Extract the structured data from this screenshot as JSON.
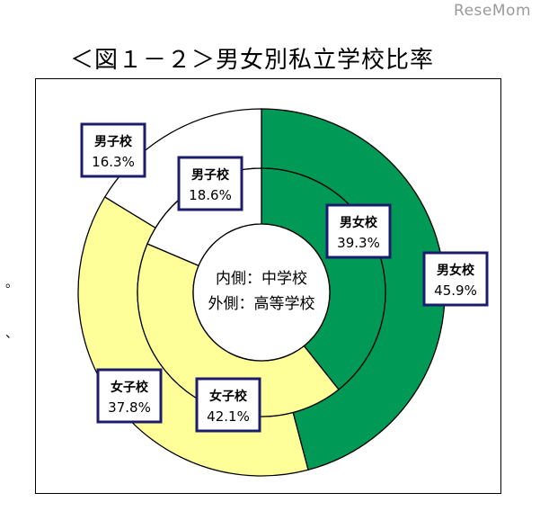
{
  "watermark": "ReseMom",
  "figure_title": "＜図１－２＞男女別私立学校比率",
  "left_edge_marks": [
    "。",
    "、"
  ],
  "chart_data": {
    "type": "pie",
    "center_label": [
      "内側：中学校",
      "外側：高等学校"
    ],
    "categories": [
      "男女校",
      "女子校",
      "男子校"
    ],
    "colors": [
      "#009955",
      "#ffff99",
      "#ffffff"
    ],
    "series": [
      {
        "ring": "inner",
        "values": [
          39.3,
          42.1,
          18.6
        ],
        "labels": [
          "39.3%",
          "42.1%",
          "18.6%"
        ]
      },
      {
        "ring": "outer",
        "values": [
          45.9,
          37.8,
          16.3
        ],
        "labels": [
          "45.9%",
          "37.8%",
          "16.3%"
        ]
      }
    ],
    "legend": "none"
  }
}
